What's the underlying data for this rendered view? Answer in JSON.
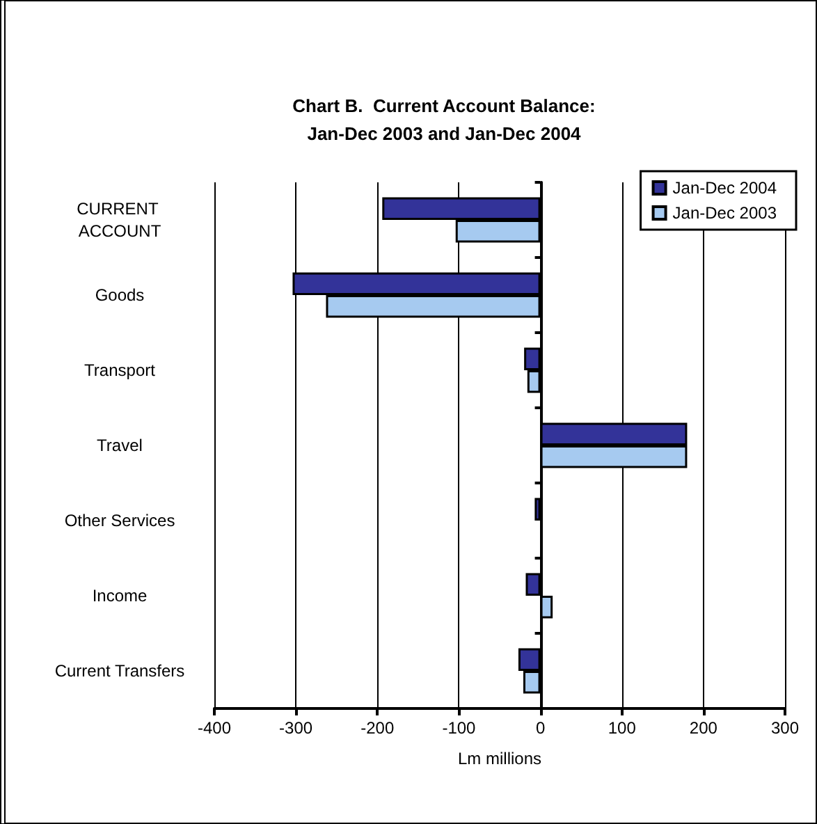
{
  "chart_data": {
    "type": "bar",
    "orientation": "horizontal",
    "title": "Chart B.  Current Account Balance:\nJan-Dec 2003 and Jan-Dec 2004",
    "xlabel": "Lm millions",
    "categories": [
      "CURRENT ACCOUNT",
      "Goods",
      "Transport",
      "Travel",
      "Other Services",
      "Income",
      "Current Transfers"
    ],
    "series": [
      {
        "name": "Jan-Dec 2004",
        "color": "#333399",
        "values": [
          -194,
          -304,
          -20,
          180,
          -7,
          -18,
          -27
        ]
      },
      {
        "name": "Jan-Dec 2003",
        "color": "#a6caf0",
        "values": [
          -104,
          -263,
          -16,
          180,
          0,
          15,
          -21
        ]
      }
    ],
    "xlim": [
      -400,
      300
    ],
    "xticks": [
      -400,
      -300,
      -200,
      -100,
      0,
      100,
      200,
      300
    ],
    "grid": "x",
    "legend": "top right"
  }
}
